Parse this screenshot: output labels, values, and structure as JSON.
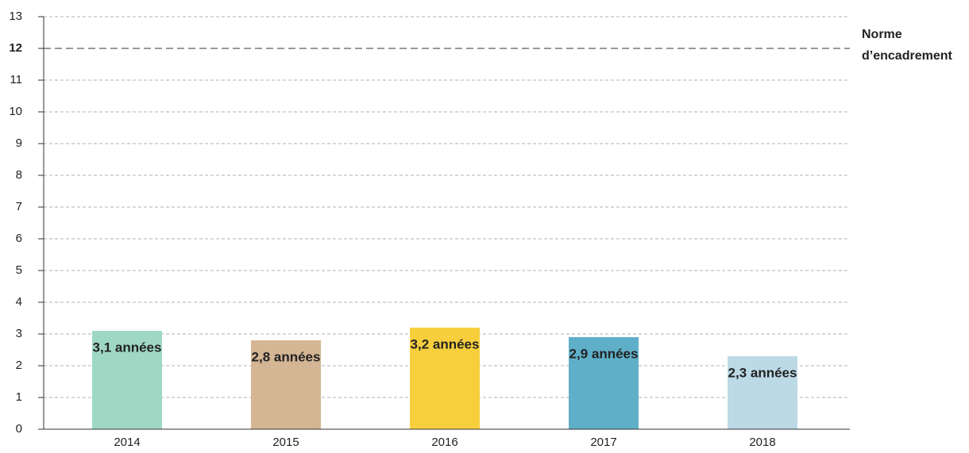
{
  "chart_data": {
    "type": "bar",
    "categories": [
      "2014",
      "2015",
      "2016",
      "2017",
      "2018"
    ],
    "values": [
      3.1,
      2.8,
      3.2,
      2.9,
      2.3
    ],
    "value_labels": [
      "3,1 années",
      "2,8 années",
      "3,2 années",
      "2,9 années",
      "2,3 années"
    ],
    "colors": [
      "#9ed8c4",
      "#d4b594",
      "#f7cf3d",
      "#5fafc8",
      "#bcd9e6"
    ],
    "ylim": [
      0,
      13
    ],
    "yticks": [
      0,
      1,
      2,
      3,
      4,
      5,
      6,
      7,
      8,
      9,
      10,
      11,
      12,
      13
    ],
    "grid": true,
    "reference_line": {
      "value": 12,
      "label_lines": [
        "Norme",
        "d’encadrement"
      ]
    }
  }
}
